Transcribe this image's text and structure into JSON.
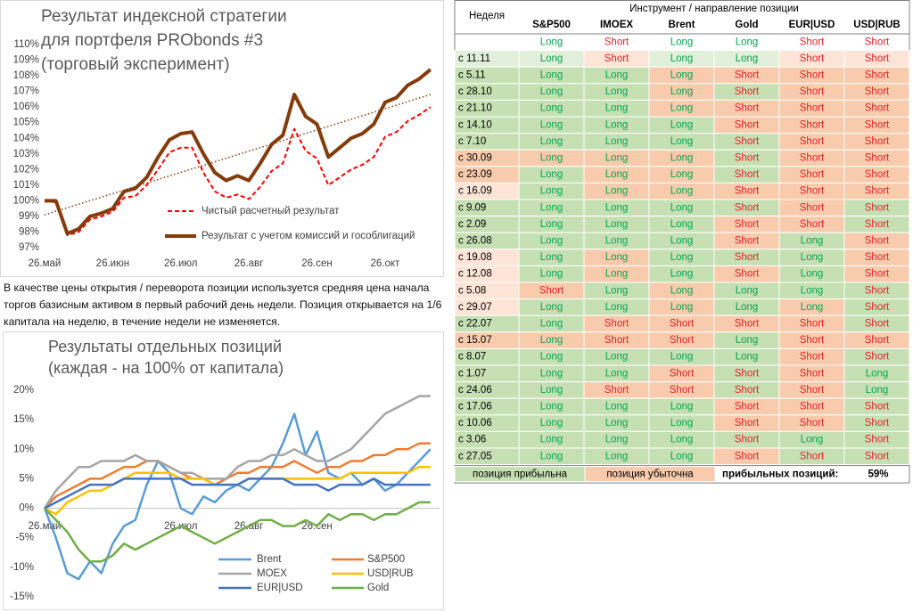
{
  "chart_data": [
    {
      "type": "line",
      "title": [
        "Результат индексной стратегии",
        "для портфеля PRObonds #3",
        "(торговый эксперимент)"
      ],
      "categories": [
        "26.май",
        null,
        null,
        null,
        null,
        null,
        "26.июн",
        null,
        null,
        null,
        null,
        null,
        "26.июл",
        null,
        null,
        null,
        null,
        null,
        "26.авг",
        null,
        null,
        null,
        null,
        null,
        "26.сен",
        null,
        null,
        null,
        null,
        null,
        "26.окт",
        null,
        null,
        null,
        null
      ],
      "series": [
        {
          "name": "Чистый расчетный результат",
          "color": "#ff0000",
          "dash": true,
          "width": 2,
          "values": [
            100,
            99.9,
            97.8,
            98,
            98.8,
            99,
            99.3,
            100.2,
            100.3,
            101,
            102,
            103.1,
            103.4,
            103.4,
            101.8,
            100.6,
            100.2,
            100.4,
            100.1,
            100.9,
            101.9,
            102.4,
            104.6,
            103.2,
            102.7,
            101,
            101.5,
            102,
            102.3,
            102.8,
            104.1,
            104.4,
            105.1,
            105.5,
            106
          ]
        },
        {
          "name": "Результат с учетом комиссий и гособлигаций",
          "color": "#843c0c",
          "dash": false,
          "width": 4,
          "values": [
            100,
            100,
            97.9,
            98.2,
            99,
            99.2,
            99.5,
            100.6,
            100.8,
            101.5,
            102.8,
            103.9,
            104.3,
            104.4,
            103,
            101.8,
            101.3,
            101.6,
            101.3,
            102.4,
            103.6,
            104.2,
            106.8,
            105.4,
            104.9,
            102.8,
            103.4,
            104,
            104.3,
            104.9,
            106.3,
            106.6,
            107.4,
            107.8,
            108.4
          ]
        }
      ],
      "trendline": {
        "color": "#843c0c",
        "values": [
          99.1,
          106.8
        ]
      },
      "ylim": [
        97,
        110
      ],
      "yticks": [
        {
          "value": 97,
          "label": "97%"
        },
        {
          "value": 98,
          "label": "98%"
        },
        {
          "value": 99,
          "label": "99%"
        },
        {
          "value": 100,
          "label": "100%"
        },
        {
          "value": 101,
          "label": "101%"
        },
        {
          "value": 102,
          "label": "102%"
        },
        {
          "value": 103,
          "label": "103%"
        },
        {
          "value": 104,
          "label": "104%"
        },
        {
          "value": 105,
          "label": "105%"
        },
        {
          "value": 106,
          "label": "106%"
        },
        {
          "value": 107,
          "label": "107%"
        },
        {
          "value": 108,
          "label": "108%"
        },
        {
          "value": 109,
          "label": "109%"
        },
        {
          "value": 110,
          "label": "110%"
        }
      ],
      "grid": false
    },
    {
      "type": "line",
      "title": [
        "Результаты отдельных позиций",
        "(каждая - на 100% от капитала)"
      ],
      "categories": [
        "26.май",
        null,
        null,
        null,
        null,
        null,
        null,
        null,
        null,
        null,
        null,
        null,
        "26.июл",
        null,
        null,
        null,
        null,
        null,
        "26.авг",
        null,
        null,
        null,
        null,
        null,
        "26.сен",
        null,
        null,
        null,
        null,
        null,
        null,
        null,
        null,
        null,
        null
      ],
      "series": [
        {
          "name": "Brent",
          "color": "#5b9bd5",
          "width": 2.5,
          "values": [
            0,
            -5,
            -11,
            -12,
            -9,
            -11,
            -6,
            -3,
            -2,
            4,
            8,
            6,
            0,
            -1,
            2,
            1,
            3,
            4,
            3,
            5,
            7,
            11,
            16,
            9,
            13,
            6,
            5,
            6,
            4,
            5,
            3,
            4,
            6,
            8,
            10
          ]
        },
        {
          "name": "S&P500",
          "color": "#ed7d31",
          "width": 2.5,
          "values": [
            0,
            2,
            3,
            4,
            5,
            5,
            6,
            7,
            7,
            8,
            8,
            7,
            6,
            5,
            5,
            4,
            5,
            6,
            6,
            7,
            7,
            7,
            8,
            7,
            6,
            7,
            7,
            8,
            8,
            9,
            9,
            10,
            10,
            11,
            11
          ]
        },
        {
          "name": "MOEX",
          "color": "#a5a5a5",
          "width": 2.5,
          "values": [
            0,
            3,
            5,
            7,
            7,
            8,
            8,
            8,
            9,
            8,
            8,
            7,
            6,
            6,
            5,
            5,
            5,
            7,
            8,
            8,
            9,
            9,
            10,
            9,
            8,
            8,
            9,
            10,
            12,
            14,
            16,
            17,
            18,
            19,
            19
          ]
        },
        {
          "name": "USD|RUB",
          "color": "#ffc000",
          "width": 2.5,
          "values": [
            0,
            -1,
            1,
            2,
            3,
            3,
            4,
            5,
            6,
            6,
            6,
            6,
            5,
            5,
            5,
            4,
            4,
            4,
            5,
            5,
            5,
            5,
            5,
            5,
            5,
            5,
            5,
            6,
            6,
            6,
            6,
            6,
            6,
            7,
            7
          ]
        },
        {
          "name": "EUR|USD",
          "color": "#4472c4",
          "width": 2.5,
          "values": [
            0,
            1,
            2,
            3,
            4,
            4,
            4,
            5,
            5,
            5,
            5,
            5,
            5,
            4,
            4,
            4,
            4,
            4,
            5,
            5,
            5,
            5,
            4,
            4,
            4,
            3,
            4,
            4,
            4,
            5,
            4,
            4,
            4,
            4,
            4
          ]
        },
        {
          "name": "Gold",
          "color": "#70ad47",
          "width": 2.5,
          "values": [
            0,
            -2,
            -4,
            -7,
            -9,
            -9,
            -8,
            -6,
            -7,
            -6,
            -5,
            -4,
            -3,
            -4,
            -5,
            -6,
            -5,
            -4,
            -3,
            -2,
            -2,
            -3,
            -3,
            -2,
            -3,
            -1,
            -2,
            -1,
            -1,
            -2,
            -1,
            -1,
            0,
            1,
            1
          ]
        }
      ],
      "ylim": [
        -15,
        20
      ],
      "yticks": [
        {
          "value": -15,
          "label": "-15%"
        },
        {
          "value": -10,
          "label": "-10%"
        },
        {
          "value": -5,
          "label": "-5%"
        },
        {
          "value": 0,
          "label": "0%"
        },
        {
          "value": 5,
          "label": "5%"
        },
        {
          "value": 10,
          "label": "10%"
        },
        {
          "value": 15,
          "label": "15%"
        },
        {
          "value": 20,
          "label": "20%"
        }
      ],
      "grid": false
    }
  ],
  "note": "В качестве цены открытия / переворота позиции используется средняя цена начала торгов базисным активом в первый рабочий день недели. Позиция открывается на 1/6 капитала на неделю, в течение недели не изменяется.",
  "table": {
    "week_header": "Неделя",
    "group_header": "Инструмент / направление позиции",
    "columns": [
      "S&P500",
      "IMOEX",
      "Brent",
      "Gold",
      "EUR|USD",
      "USD|RUB"
    ],
    "position_colors": {
      "Long": "#00a650",
      "Short": "#e8202a"
    },
    "current": {
      "cells": [
        "Long",
        "Short",
        "Long",
        "Long",
        "Short",
        "Short"
      ]
    },
    "rows": [
      {
        "week": "с 11.11",
        "week_color": "#e2efda",
        "cells": [
          "Long",
          "Short",
          "Long",
          "Long",
          "Short",
          "Short"
        ],
        "colors": [
          "#e2efda",
          "#fce4d6",
          "#e2efda",
          "#e2efda",
          "#fce4d6",
          "#fce4d6"
        ]
      },
      {
        "week": "с 5.11",
        "week_color": "#c6e0b4",
        "cells": [
          "Long",
          "Long",
          "Long",
          "Short",
          "Short",
          "Short"
        ],
        "colors": [
          "#c6e0b4",
          "#c6e0b4",
          "#f8cbad",
          "#f8cbad",
          "#f8cbad",
          "#f8cbad"
        ]
      },
      {
        "week": "с 28.10",
        "week_color": "#c6e0b4",
        "cells": [
          "Long",
          "Long",
          "Long",
          "Short",
          "Short",
          "Short"
        ],
        "colors": [
          "#c6e0b4",
          "#c6e0b4",
          "#f8cbad",
          "#c6e0b4",
          "#f8cbad",
          "#f8cbad"
        ]
      },
      {
        "week": "с 21.10",
        "week_color": "#c6e0b4",
        "cells": [
          "Long",
          "Long",
          "Long",
          "Short",
          "Short",
          "Short"
        ],
        "colors": [
          "#c6e0b4",
          "#c6e0b4",
          "#f8cbad",
          "#f8cbad",
          "#f8cbad",
          "#f8cbad"
        ]
      },
      {
        "week": "с 14.10",
        "week_color": "#c6e0b4",
        "cells": [
          "Long",
          "Long",
          "Long",
          "Short",
          "Short",
          "Short"
        ],
        "colors": [
          "#c6e0b4",
          "#c6e0b4",
          "#c6e0b4",
          "#f8cbad",
          "#f8cbad",
          "#f8cbad"
        ]
      },
      {
        "week": "с 7.10",
        "week_color": "#c6e0b4",
        "cells": [
          "Long",
          "Long",
          "Long",
          "Short",
          "Short",
          "Short"
        ],
        "colors": [
          "#c6e0b4",
          "#c6e0b4",
          "#c6e0b4",
          "#c6e0b4",
          "#f8cbad",
          "#f8cbad"
        ]
      },
      {
        "week": "с 30.09",
        "week_color": "#f8cbad",
        "cells": [
          "Long",
          "Long",
          "Long",
          "Short",
          "Short",
          "Short"
        ],
        "colors": [
          "#f8cbad",
          "#f8cbad",
          "#f8cbad",
          "#c6e0b4",
          "#f8cbad",
          "#f8cbad"
        ]
      },
      {
        "week": "с 23.09",
        "week_color": "#f8cbad",
        "cells": [
          "Long",
          "Long",
          "Long",
          "Short",
          "Short",
          "Short"
        ],
        "colors": [
          "#c6e0b4",
          "#f8cbad",
          "#f8cbad",
          "#c6e0b4",
          "#f8cbad",
          "#f8cbad"
        ]
      },
      {
        "week": "с 16.09",
        "week_color": "#fce4d6",
        "cells": [
          "Long",
          "Long",
          "Long",
          "Short",
          "Short",
          "Short"
        ],
        "colors": [
          "#c6e0b4",
          "#f8cbad",
          "#f8cbad",
          "#f8cbad",
          "#f8cbad",
          "#f8cbad"
        ]
      },
      {
        "week": "с 9.09",
        "week_color": "#c6e0b4",
        "cells": [
          "Long",
          "Long",
          "Long",
          "Short",
          "Short",
          "Short"
        ],
        "colors": [
          "#c6e0b4",
          "#c6e0b4",
          "#c6e0b4",
          "#c6e0b4",
          "#f8cbad",
          "#c6e0b4"
        ]
      },
      {
        "week": "с 2.09",
        "week_color": "#c6e0b4",
        "cells": [
          "Long",
          "Long",
          "Long",
          "Short",
          "Short",
          "Short"
        ],
        "colors": [
          "#c6e0b4",
          "#c6e0b4",
          "#c6e0b4",
          "#f8cbad",
          "#f8cbad",
          "#c6e0b4"
        ]
      },
      {
        "week": "с 26.08",
        "week_color": "#c6e0b4",
        "cells": [
          "Long",
          "Long",
          "Long",
          "Short",
          "Long",
          "Short"
        ],
        "colors": [
          "#c6e0b4",
          "#c6e0b4",
          "#c6e0b4",
          "#f8cbad",
          "#c6e0b4",
          "#f8cbad"
        ]
      },
      {
        "week": "с 19.08",
        "week_color": "#fce4d6",
        "cells": [
          "Long",
          "Long",
          "Long",
          "Short",
          "Long",
          "Short"
        ],
        "colors": [
          "#c6e0b4",
          "#f8cbad",
          "#c6e0b4",
          "#c6e0b4",
          "#c6e0b4",
          "#f8cbad"
        ]
      },
      {
        "week": "с 12.08",
        "week_color": "#fce4d6",
        "cells": [
          "Long",
          "Long",
          "Long",
          "Short",
          "Long",
          "Short"
        ],
        "colors": [
          "#c6e0b4",
          "#f8cbad",
          "#c6e0b4",
          "#f8cbad",
          "#c6e0b4",
          "#f8cbad"
        ]
      },
      {
        "week": "с 5.08",
        "week_color": "#fce4d6",
        "cells": [
          "Short",
          "Long",
          "Long",
          "Long",
          "Long",
          "Short"
        ],
        "colors": [
          "#f8cbad",
          "#c6e0b4",
          "#f8cbad",
          "#c6e0b4",
          "#c6e0b4",
          "#c6e0b4"
        ]
      },
      {
        "week": "с 29.07",
        "week_color": "#fce4d6",
        "cells": [
          "Long",
          "Long",
          "Long",
          "Long",
          "Long",
          "Short"
        ],
        "colors": [
          "#c6e0b4",
          "#c6e0b4",
          "#f8cbad",
          "#c6e0b4",
          "#f8cbad",
          "#c6e0b4"
        ]
      },
      {
        "week": "с 22.07",
        "week_color": "#c6e0b4",
        "cells": [
          "Long",
          "Short",
          "Short",
          "Short",
          "Short",
          "Short"
        ],
        "colors": [
          "#c6e0b4",
          "#f8cbad",
          "#f8cbad",
          "#f8cbad",
          "#f8cbad",
          "#c6e0b4"
        ]
      },
      {
        "week": "с 15.07",
        "week_color": "#f8cbad",
        "cells": [
          "Long",
          "Short",
          "Short",
          "Long",
          "Short",
          "Short"
        ],
        "colors": [
          "#f8cbad",
          "#f8cbad",
          "#f8cbad",
          "#c6e0b4",
          "#f8cbad",
          "#f8cbad"
        ]
      },
      {
        "week": "с 8.07",
        "week_color": "#c6e0b4",
        "cells": [
          "Long",
          "Long",
          "Long",
          "Long",
          "Short",
          "Short"
        ],
        "colors": [
          "#c6e0b4",
          "#c6e0b4",
          "#c6e0b4",
          "#c6e0b4",
          "#f8cbad",
          "#c6e0b4"
        ]
      },
      {
        "week": "с 1.07",
        "week_color": "#c6e0b4",
        "cells": [
          "Long",
          "Long",
          "Short",
          "Short",
          "Short",
          "Long"
        ],
        "colors": [
          "#c6e0b4",
          "#c6e0b4",
          "#f8cbad",
          "#c6e0b4",
          "#f8cbad",
          "#c6e0b4"
        ]
      },
      {
        "week": "с 24.06",
        "week_color": "#c6e0b4",
        "cells": [
          "Long",
          "Short",
          "Short",
          "Short",
          "Short",
          "Long"
        ],
        "colors": [
          "#c6e0b4",
          "#f8cbad",
          "#f8cbad",
          "#c6e0b4",
          "#f8cbad",
          "#c6e0b4"
        ]
      },
      {
        "week": "с 17.06",
        "week_color": "#c6e0b4",
        "cells": [
          "Long",
          "Long",
          "Long",
          "Short",
          "Short",
          "Short"
        ],
        "colors": [
          "#c6e0b4",
          "#c6e0b4",
          "#c6e0b4",
          "#f8cbad",
          "#f8cbad",
          "#c6e0b4"
        ]
      },
      {
        "week": "с 10.06",
        "week_color": "#c6e0b4",
        "cells": [
          "Long",
          "Long",
          "Long",
          "Short",
          "Short",
          "Short"
        ],
        "colors": [
          "#c6e0b4",
          "#c6e0b4",
          "#c6e0b4",
          "#f8cbad",
          "#f8cbad",
          "#c6e0b4"
        ]
      },
      {
        "week": "с 3.06",
        "week_color": "#c6e0b4",
        "cells": [
          "Long",
          "Long",
          "Long",
          "Short",
          "Long",
          "Short"
        ],
        "colors": [
          "#c6e0b4",
          "#c6e0b4",
          "#c6e0b4",
          "#c6e0b4",
          "#c6e0b4",
          "#c6e0b4"
        ]
      },
      {
        "week": "с 27.05",
        "week_color": "#c6e0b4",
        "cells": [
          "Long",
          "Long",
          "Long",
          "Short",
          "Short",
          "Short"
        ],
        "colors": [
          "#c6e0b4",
          "#c6e0b4",
          "#c6e0b4",
          "#f8cbad",
          "#c6e0b4",
          "#c6e0b4"
        ]
      }
    ],
    "legend": [
      {
        "label": "позиция прибыльна",
        "color": "#c6e0b4"
      },
      {
        "label": "позиция убыточна",
        "color": "#f8cbad"
      }
    ],
    "summary_label": "прибыльных позиций:",
    "summary_value": "59%"
  }
}
